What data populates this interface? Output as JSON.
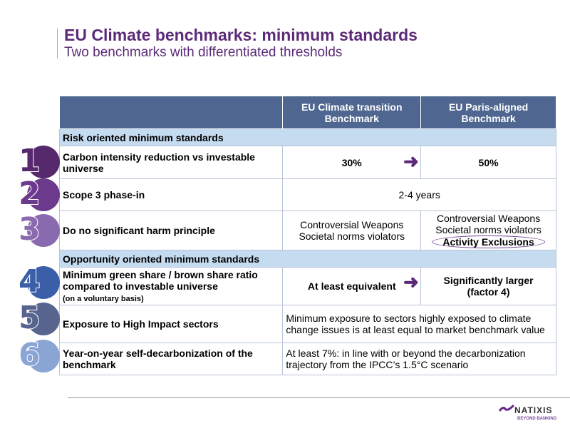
{
  "title": "EU Climate benchmarks: minimum standards",
  "subtitle": "Two benchmarks with differentiated thresholds",
  "table": {
    "headers": [
      "",
      "EU Climate transition Benchmark",
      "EU Paris-aligned Benchmark"
    ],
    "section1": "Risk oriented minimum standards",
    "row1": {
      "label": "Carbon intensity reduction vs investable universe",
      "ctb": "30%",
      "pab": "50%"
    },
    "row2": {
      "label": "Scope 3 phase-in",
      "both": "2-4 years"
    },
    "row3": {
      "label": "Do no significant harm principle",
      "ctb": [
        "Controversial Weapons",
        "Societal norms violators"
      ],
      "pab": [
        "Controversial Weapons",
        "Societal norms violators",
        "Activity Exclusions"
      ]
    },
    "section2": "Opportunity oriented minimum standards",
    "row4": {
      "label": "Minimum green share / brown share ratio compared to investable universe",
      "note": "(on a voluntary basis)",
      "ctb": "At least equivalent",
      "pab": "Significantly larger (factor 4)"
    },
    "row5": {
      "label": "Exposure to High Impact sectors",
      "both": "Minimum exposure to sectors highly exposed to climate change issues is at least equal to market benchmark value"
    },
    "row6": {
      "label": "Year-on-year self-decarbonization of the benchmark",
      "both": "At least 7%: in line with or beyond the decarbonization trajectory from the IPCC’s 1.5°C scenario"
    }
  },
  "numbers": [
    {
      "n": "1",
      "color": "#56286c"
    },
    {
      "n": "2",
      "color": "#6c3a8c"
    },
    {
      "n": "3",
      "color": "#8a6aae"
    },
    {
      "n": "4",
      "color": "#3a5ea8"
    },
    {
      "n": "5",
      "color": "#56648e"
    },
    {
      "n": "6",
      "color": "#8aa4d4"
    }
  ],
  "logo": {
    "name": "NATIXIS",
    "tagline": "BEYOND BANKING"
  }
}
